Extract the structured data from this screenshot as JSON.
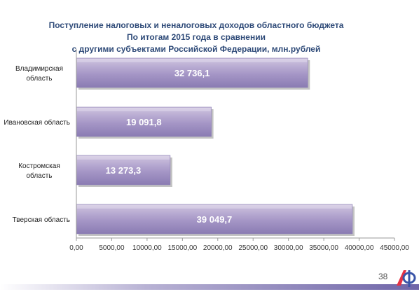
{
  "slide": {
    "title_lines": [
      "Поступление налоговых и неналоговых доходов областного бюджета",
      "По итогам 2015 года в сравнении",
      "с другими субъектами Российской Федерации, млн.рублей"
    ],
    "page_number": "38",
    "colors": {
      "title": "#2e4a78",
      "bar_top": "#cfc4e0",
      "bar_mid": "#a596c6",
      "bar_bottom": "#8a7bb3",
      "label": "#ffffff",
      "logo_red": "#e63244",
      "logo_blue": "#3a55a8"
    }
  },
  "chart_data": {
    "type": "bar",
    "orientation": "horizontal",
    "categories": [
      [
        "Владимирская",
        "область"
      ],
      [
        "Ивановская область"
      ],
      [
        "Костромская",
        "область"
      ],
      [
        "Тверская область"
      ]
    ],
    "values": [
      32736.1,
      19091.8,
      13273.3,
      39049.7
    ],
    "value_labels": [
      "32 736,1",
      "19 091,8",
      "13 273,3",
      "39 049,7"
    ],
    "xlim": [
      0,
      45000
    ],
    "x_ticks": [
      0,
      5000,
      10000,
      15000,
      20000,
      25000,
      30000,
      35000,
      40000,
      45000
    ],
    "x_tick_labels": [
      "0,00",
      "5000,00",
      "10000,00",
      "15000,00",
      "20000,00",
      "25000,00",
      "30000,00",
      "35000,00",
      "40000,00",
      "45000,00"
    ],
    "grid": false,
    "legend": "none"
  }
}
